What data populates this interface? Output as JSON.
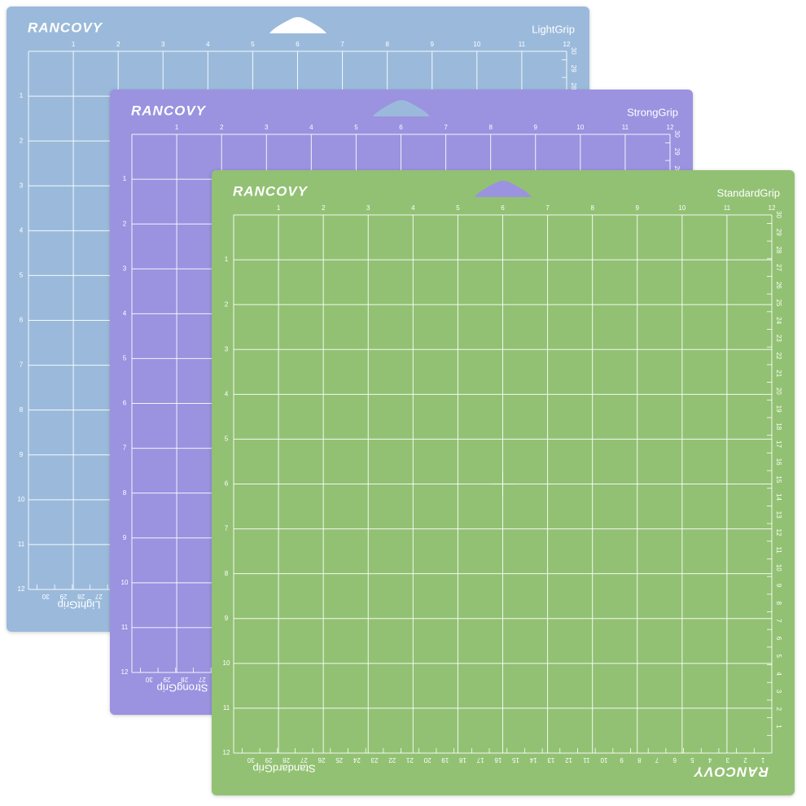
{
  "mats": [
    {
      "brand": "RANCOVY",
      "grip": "LightGrip"
    },
    {
      "brand": "RANCOVY",
      "grip": "StrongGrip"
    },
    {
      "brand": "RANCOVY",
      "grip": "StandardGrip"
    }
  ],
  "inch_labels": [
    1,
    2,
    3,
    4,
    5,
    6,
    7,
    8,
    9,
    10,
    11,
    12
  ],
  "cm_labels": [
    1,
    2,
    3,
    4,
    5,
    6,
    7,
    8,
    9,
    10,
    11,
    12,
    13,
    14,
    15,
    16,
    17,
    18,
    19,
    20,
    21,
    22,
    23,
    24,
    25,
    26,
    27,
    28,
    29,
    30
  ]
}
